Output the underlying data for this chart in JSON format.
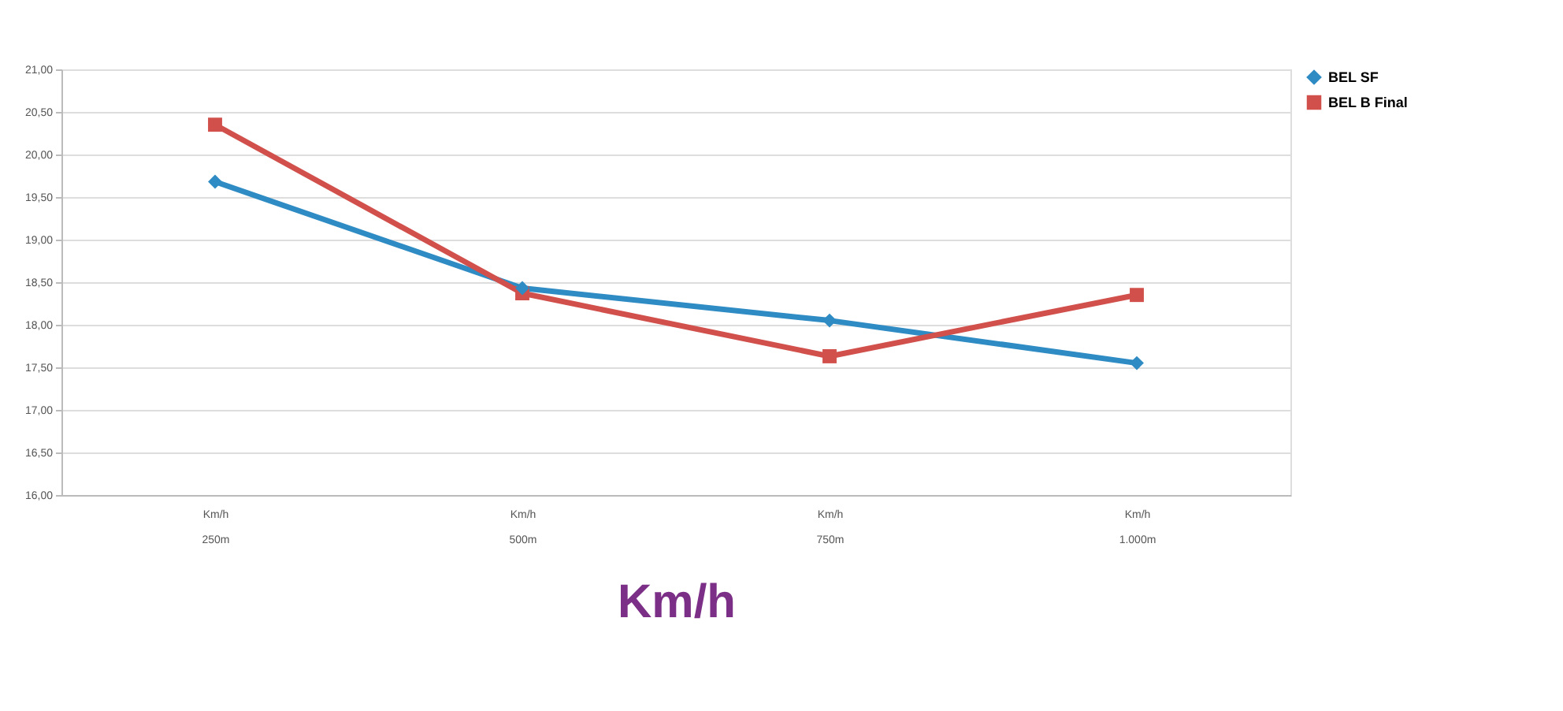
{
  "chart_data": {
    "type": "line",
    "xlabel": "Km/h",
    "categories": [
      "Km/h\n250m",
      "Km/h\n500m",
      "Km/h\n750m",
      "Km/h\n1.000m"
    ],
    "series": [
      {
        "name": "BEL SF",
        "color": "#2e8bc3",
        "marker": "diamond",
        "values": [
          19.68,
          18.43,
          18.05,
          17.55
        ]
      },
      {
        "name": "BEL B Final",
        "color": "#d2504c",
        "marker": "square",
        "values": [
          20.35,
          18.37,
          17.63,
          18.35
        ]
      }
    ],
    "ylim": [
      16,
      21
    ],
    "yticks": [
      {
        "value": 16,
        "label": "16,00"
      },
      {
        "value": 16.5,
        "label": "16,50"
      },
      {
        "value": 17,
        "label": "17,00"
      },
      {
        "value": 17.5,
        "label": "17,50"
      },
      {
        "value": 18,
        "label": "18,00"
      },
      {
        "value": 18.5,
        "label": "18,50"
      },
      {
        "value": 19,
        "label": "19,00"
      },
      {
        "value": 19.5,
        "label": "19,50"
      },
      {
        "value": 20,
        "label": "20,00"
      },
      {
        "value": 20.5,
        "label": "20,50"
      },
      {
        "value": 21,
        "label": "21,00"
      }
    ],
    "grid": "y",
    "legend": "right",
    "line_style": "solid"
  }
}
